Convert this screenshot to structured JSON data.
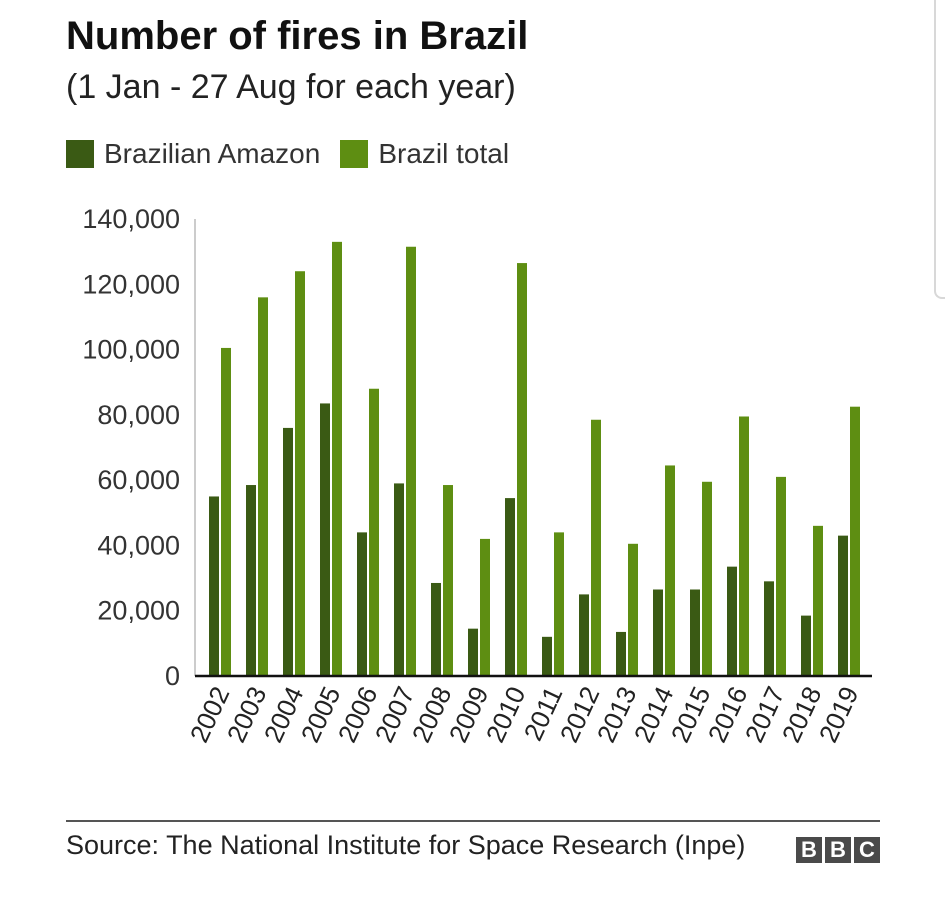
{
  "chart_data": {
    "type": "bar",
    "title": "Number of fires in Brazil",
    "subtitle": "(1 Jan - 27 Aug for each year)",
    "categories": [
      "2002",
      "2003",
      "2004",
      "2005",
      "2006",
      "2007",
      "2008",
      "2009",
      "2010",
      "2011",
      "2012",
      "2013",
      "2014",
      "2015",
      "2016",
      "2017",
      "2018",
      "2019"
    ],
    "series": [
      {
        "name": "Brazilian Amazon",
        "color": "#3a5a14",
        "values": [
          55000,
          58500,
          76000,
          83500,
          44000,
          59000,
          28500,
          14500,
          54500,
          12000,
          25000,
          13500,
          26500,
          26500,
          33500,
          29000,
          18500,
          43000
        ]
      },
      {
        "name": "Brazil total",
        "color": "#5e8e12",
        "values": [
          100500,
          116000,
          124000,
          133000,
          88000,
          131500,
          58500,
          42000,
          126500,
          44000,
          78500,
          40500,
          64500,
          59500,
          79500,
          61000,
          46000,
          82500
        ]
      }
    ],
    "yticks": [
      "0",
      "20,000",
      "40,000",
      "60,000",
      "80,000",
      "100,000",
      "120,000",
      "140,000"
    ],
    "ylim": [
      0,
      140000
    ],
    "grid": false,
    "legend_position": "top-left"
  },
  "footer": {
    "source": "Source: The National Institute for Space Research (Inpe)",
    "logo_letters": [
      "B",
      "B",
      "C"
    ]
  }
}
